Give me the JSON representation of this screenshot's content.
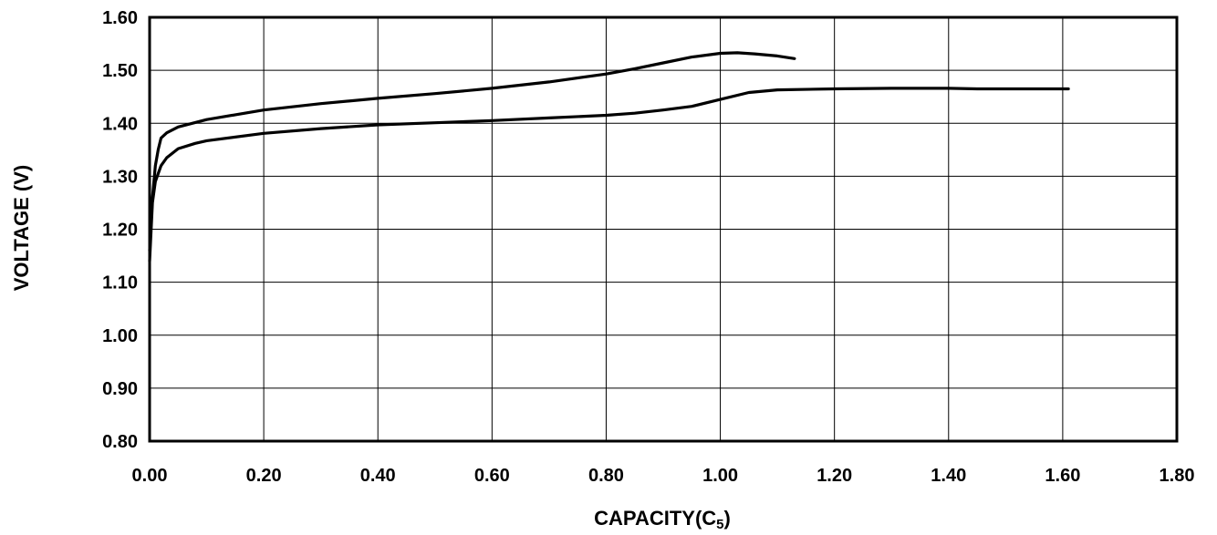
{
  "chart_data": {
    "type": "line",
    "title": "",
    "xlabel": "CAPACITY(C",
    "xlabel_sub": "5",
    "xlabel_close": ")",
    "ylabel": "VOLTAGE (V)",
    "xlim": [
      0,
      1.8
    ],
    "ylim": [
      0.8,
      1.6
    ],
    "grid": true,
    "legend": "none",
    "x_ticks": [
      0.0,
      0.2,
      0.4,
      0.6,
      0.8,
      1.0,
      1.2,
      1.4,
      1.6,
      1.8
    ],
    "x_tick_labels": [
      "0.00",
      "0.20",
      "0.40",
      "0.60",
      "0.80",
      "1.00",
      "1.20",
      "1.40",
      "1.60",
      "1.80"
    ],
    "y_ticks": [
      0.8,
      0.9,
      1.0,
      1.1,
      1.2,
      1.3,
      1.4,
      1.5,
      1.6
    ],
    "y_tick_labels": [
      "0.80",
      "0.90",
      "1.00",
      "1.10",
      "1.20",
      "1.30",
      "1.40",
      "1.50",
      "1.60"
    ],
    "line_color": "#000000",
    "series": [
      {
        "x": [
          0.0,
          0.005,
          0.01,
          0.015,
          0.02,
          0.03,
          0.05,
          0.1,
          0.2,
          0.3,
          0.4,
          0.5,
          0.6,
          0.7,
          0.8,
          0.85,
          0.9,
          0.95,
          1.0,
          1.03,
          1.06,
          1.1,
          1.13
        ],
        "values": [
          1.16,
          1.26,
          1.32,
          1.35,
          1.372,
          1.382,
          1.393,
          1.407,
          1.425,
          1.437,
          1.447,
          1.456,
          1.466,
          1.478,
          1.493,
          1.503,
          1.514,
          1.525,
          1.532,
          1.533,
          1.531,
          1.527,
          1.522
        ]
      },
      {
        "x": [
          0.0,
          0.005,
          0.01,
          0.02,
          0.03,
          0.05,
          0.08,
          0.1,
          0.2,
          0.3,
          0.4,
          0.5,
          0.6,
          0.7,
          0.8,
          0.85,
          0.9,
          0.95,
          1.0,
          1.05,
          1.1,
          1.2,
          1.3,
          1.4,
          1.45,
          1.5,
          1.61
        ],
        "values": [
          1.14,
          1.25,
          1.29,
          1.32,
          1.335,
          1.352,
          1.362,
          1.367,
          1.381,
          1.39,
          1.397,
          1.401,
          1.405,
          1.41,
          1.415,
          1.419,
          1.425,
          1.432,
          1.445,
          1.458,
          1.463,
          1.465,
          1.466,
          1.466,
          1.465,
          1.465,
          1.465
        ]
      }
    ]
  }
}
